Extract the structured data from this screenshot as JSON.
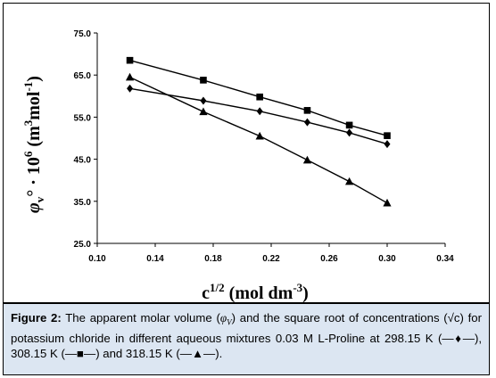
{
  "chart_data": {
    "type": "line",
    "xlabel_main": "c",
    "xlabel_sup": "1/2",
    "xlabel_unit": "(mol dm",
    "xlabel_unit_sup": "-3",
    "xlabel_close": ")",
    "ylabel_symbol": "φ",
    "ylabel_sub": "v",
    "ylabel_rest": "° · 10",
    "ylabel_exp": "6",
    "ylabel_unit_open": " (m",
    "ylabel_unit_sup1": "3",
    "ylabel_unit_mid": "mol",
    "ylabel_unit_sup2": "-1",
    "ylabel_unit_close": ")",
    "xlim": [
      0.1,
      0.34
    ],
    "ylim": [
      25.0,
      75.0
    ],
    "x_ticks": [
      "0.10",
      "0.14",
      "0.18",
      "0.22",
      "0.26",
      "0.30",
      "0.34"
    ],
    "y_ticks": [
      "25.0",
      "35.0",
      "45.0",
      "55.0",
      "65.0",
      "75.0"
    ],
    "grid": false,
    "series": [
      {
        "name": "298.15 K",
        "marker": "diamond",
        "color": "#000000",
        "x": [
          0.1225,
          0.1732,
          0.2121,
          0.2449,
          0.2739,
          0.3
        ],
        "y": [
          61.8,
          58.9,
          56.4,
          53.8,
          51.3,
          48.6
        ]
      },
      {
        "name": "308.15 K",
        "marker": "square",
        "color": "#000000",
        "x": [
          0.1225,
          0.1732,
          0.2121,
          0.2449,
          0.2739,
          0.3
        ],
        "y": [
          68.5,
          63.8,
          59.8,
          56.6,
          53.1,
          50.6
        ]
      },
      {
        "name": "318.15 K",
        "marker": "triangle",
        "color": "#000000",
        "x": [
          0.1225,
          0.1732,
          0.2121,
          0.2449,
          0.2739,
          0.3
        ],
        "y": [
          64.5,
          56.3,
          50.5,
          44.8,
          39.7,
          34.6
        ]
      }
    ]
  },
  "caption": {
    "label": "Figure 2:",
    "text_a": " The apparent molar volume (",
    "symbol": "φ",
    "symbol_sub": "V",
    "text_b": ") and the square root of concentrations (√c) for potassium chloride in different aqueous mixtures 0.03 M L-Proline at 298.15 K (—♦—), 308.15 K (—■—) and 318.15 K (—▲—)."
  }
}
